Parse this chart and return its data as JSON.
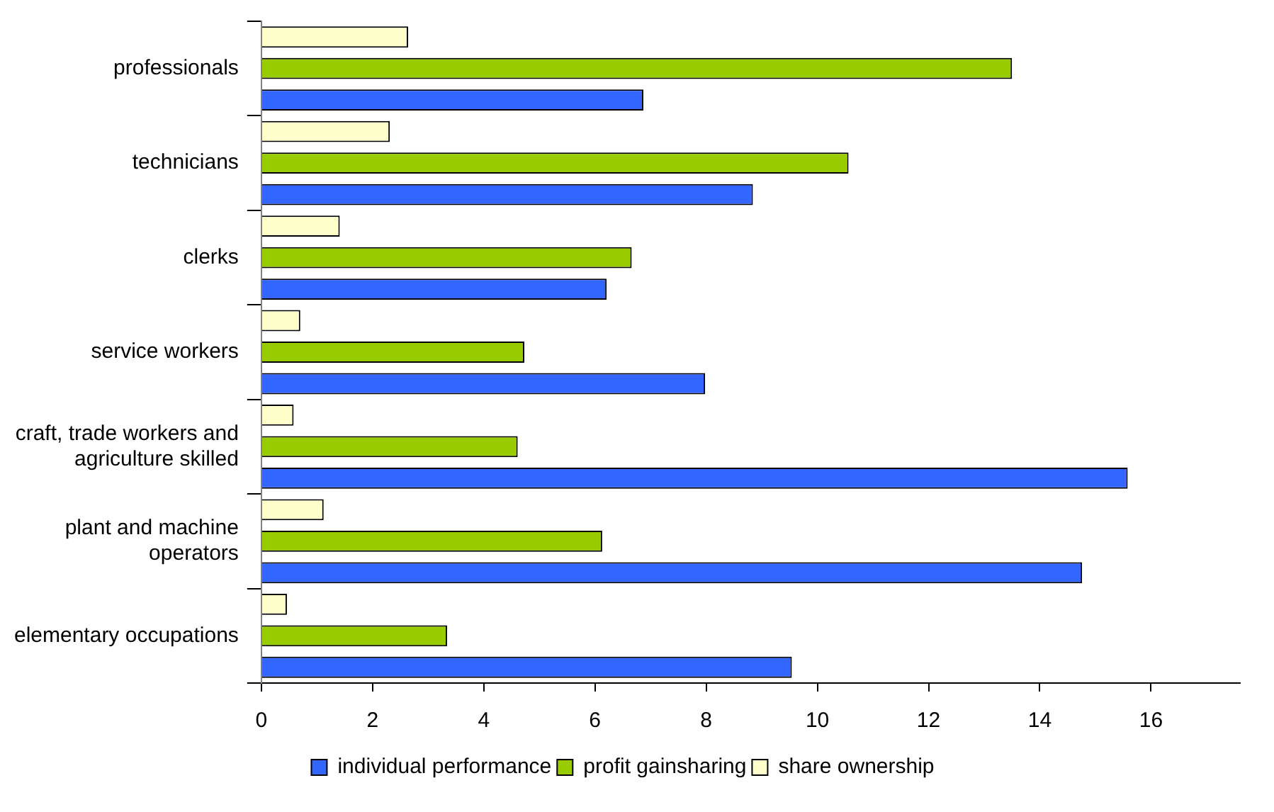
{
  "chart_data": {
    "type": "bar",
    "orientation": "horizontal",
    "categories": [
      "professionals",
      "technicians",
      "clerks",
      "service workers",
      "craft, trade workers and\nagriculture skilled",
      "plant and machine\noperators",
      "elementary occupations"
    ],
    "series": [
      {
        "name": "individual performance",
        "color": "#3366ff",
        "values": [
          6.87,
          8.84,
          6.21,
          7.98,
          15.58,
          14.76,
          9.54
        ]
      },
      {
        "name": "profit gainsharing",
        "color": "#99cc00",
        "values": [
          13.5,
          10.56,
          6.66,
          4.73,
          4.61,
          6.13,
          3.34
        ]
      },
      {
        "name": "share ownership",
        "color": "#ffffcc",
        "values": [
          2.64,
          2.31,
          1.41,
          0.7,
          0.58,
          1.12,
          0.46
        ]
      }
    ],
    "xlim": [
      0,
      17.6
    ],
    "xticks": [
      0,
      2,
      4,
      6,
      8,
      10,
      12,
      14,
      16
    ],
    "grid": false,
    "legend": "bottom"
  }
}
